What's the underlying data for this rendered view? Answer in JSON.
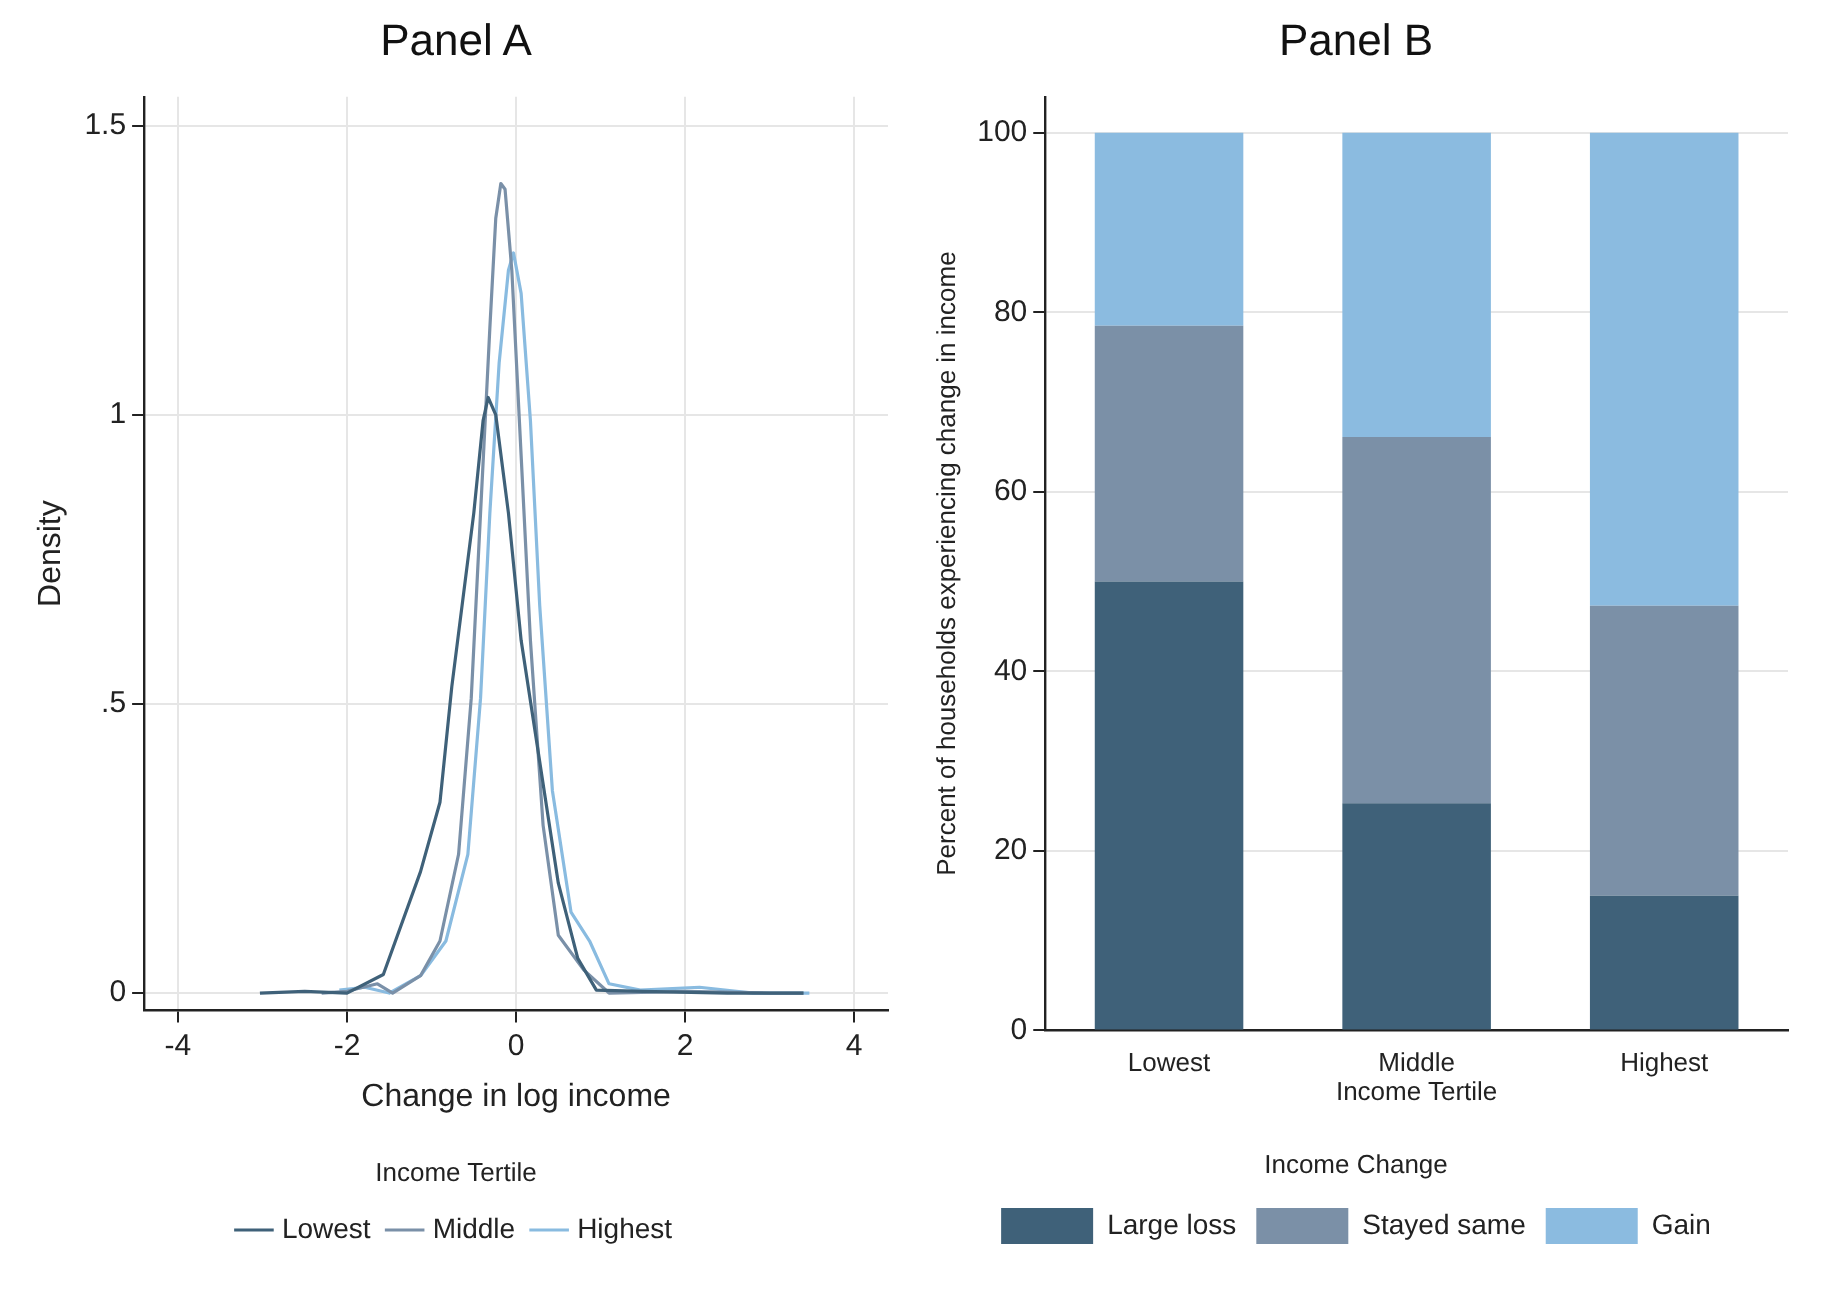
{
  "chart_data": [
    {
      "type": "line",
      "title": "Panel A",
      "xlabel": "Change in log income",
      "ylabel": "Density",
      "legend_title": "Income Tertile",
      "legend": "bottom",
      "marker": "none",
      "grid": true,
      "xlim": [
        -4.4,
        4.4
      ],
      "xticks": [
        -4,
        -2,
        0,
        2,
        4
      ],
      "ylim": [
        -0.03,
        1.55
      ],
      "yticks": [
        0,
        {
          "value": 0.5,
          "label": ".5"
        },
        1,
        1.5
      ],
      "series": [
        {
          "name": "Lowest",
          "color": "#3f6179",
          "x": [
            -3.03,
            -2.5,
            -2.0,
            -1.57,
            -1.13,
            -0.9,
            -0.76,
            -0.5,
            -0.39,
            -0.33,
            -0.24,
            -0.09,
            0.06,
            0.28,
            0.5,
            0.73,
            0.95,
            1.5,
            2.5,
            3.4
          ],
          "values": [
            0,
            0.003,
            0,
            0.032,
            0.21,
            0.33,
            0.53,
            0.83,
            0.99,
            1.03,
            1.0,
            0.83,
            0.61,
            0.4,
            0.19,
            0.06,
            0.005,
            0.003,
            0,
            0
          ]
        },
        {
          "name": "Middle",
          "color": "#7a90a8",
          "x": [
            -2.3,
            -2.0,
            -1.64,
            -1.46,
            -1.13,
            -0.9,
            -0.68,
            -0.53,
            -0.42,
            -0.31,
            -0.24,
            -0.18,
            -0.13,
            -0.05,
            0.06,
            0.17,
            0.32,
            0.5,
            0.8,
            1.1,
            2.0,
            3.0,
            3.4
          ],
          "values": [
            0,
            0.003,
            0.016,
            0,
            0.03,
            0.09,
            0.24,
            0.51,
            0.83,
            1.15,
            1.34,
            1.4,
            1.39,
            1.25,
            0.93,
            0.61,
            0.29,
            0.1,
            0.04,
            0,
            0.003,
            0,
            0
          ]
        },
        {
          "name": "Highest",
          "color": "#89bbe0",
          "x": [
            -2.09,
            -1.79,
            -1.5,
            -1.13,
            -0.83,
            -0.57,
            -0.42,
            -0.31,
            -0.2,
            -0.09,
            -0.03,
            0.06,
            0.17,
            0.28,
            0.43,
            0.65,
            0.87,
            1.1,
            1.47,
            2.17,
            2.8,
            3.47
          ],
          "values": [
            0.005,
            0.01,
            0,
            0.03,
            0.09,
            0.24,
            0.51,
            0.83,
            1.09,
            1.25,
            1.28,
            1.21,
            0.99,
            0.67,
            0.35,
            0.14,
            0.09,
            0.016,
            0.005,
            0.01,
            0,
            0
          ]
        }
      ]
    },
    {
      "type": "bar",
      "title": "Panel B",
      "xlabel": "Income Tertile",
      "ylabel": "Percent of households experiencing change in income",
      "legend_title": "Income Change",
      "legend": "bottom",
      "stacked": true,
      "grid": "y",
      "categories": [
        "Lowest",
        "Middle",
        "Highest"
      ],
      "ylim": [
        0,
        104
      ],
      "yticks": [
        0,
        20,
        40,
        60,
        80,
        100
      ],
      "series": [
        {
          "name": "Large loss",
          "color": "#3f6179",
          "values": [
            50,
            25.3,
            15
          ]
        },
        {
          "name": "Stayed same",
          "color": "#7b90a7",
          "values": [
            28.5,
            40.8,
            32.3
          ]
        },
        {
          "name": "Gain",
          "color": "#8bbbe0",
          "values": [
            21.5,
            33.9,
            52.7
          ]
        }
      ]
    }
  ]
}
